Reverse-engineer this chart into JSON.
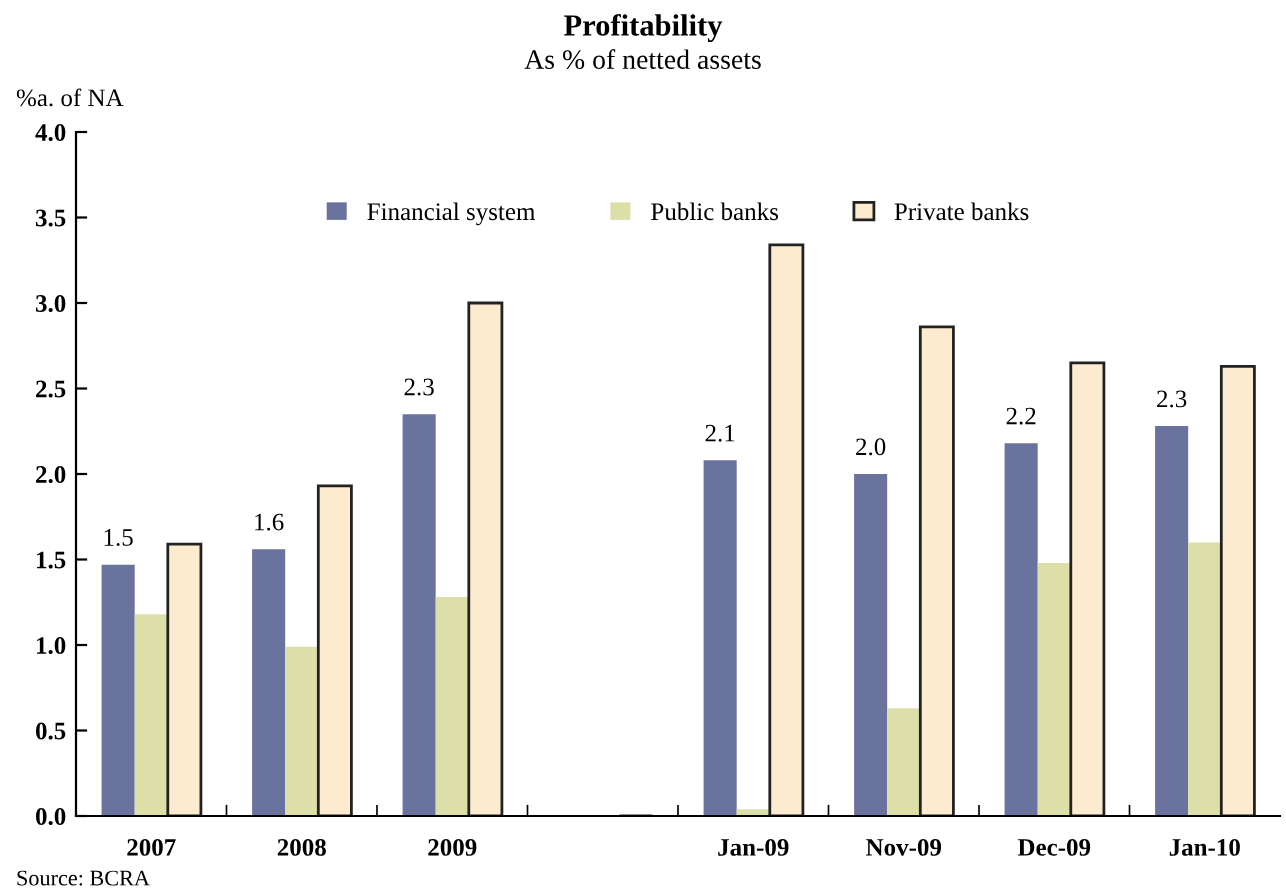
{
  "chart_data": {
    "type": "bar",
    "title": "Profitability",
    "subtitle": "As % of netted assets",
    "ylabel": "%a. of NA",
    "categories": [
      "2007",
      "2008",
      "2009",
      null,
      "Jan-09",
      "Nov-09",
      "Dec-09",
      "Jan-10"
    ],
    "series": [
      {
        "name": "Financial system",
        "color": "#6a729e",
        "values": [
          1.47,
          1.56,
          2.35,
          null,
          2.08,
          2.0,
          2.18,
          2.28
        ],
        "value_labels": [
          "1.5",
          "1.6",
          "2.3",
          null,
          "2.1",
          "2.0",
          "2.2",
          "2.3"
        ]
      },
      {
        "name": "Public banks",
        "color": "#dcdfa8",
        "values": [
          1.18,
          0.99,
          1.28,
          null,
          0.04,
          0.63,
          1.48,
          1.6
        ]
      },
      {
        "name": "Private banks",
        "color": "#fdebd0",
        "values": [
          1.59,
          1.93,
          3.0,
          null,
          3.34,
          2.86,
          2.65,
          2.63
        ]
      }
    ],
    "ylim": [
      0,
      4
    ],
    "yticks": [
      "0.0",
      "0.5",
      "1.0",
      "1.5",
      "2.0",
      "2.5",
      "3.0",
      "3.5",
      "4.0"
    ],
    "grid": false,
    "legend": "top",
    "annotations": [
      "Source: BCRA"
    ]
  }
}
